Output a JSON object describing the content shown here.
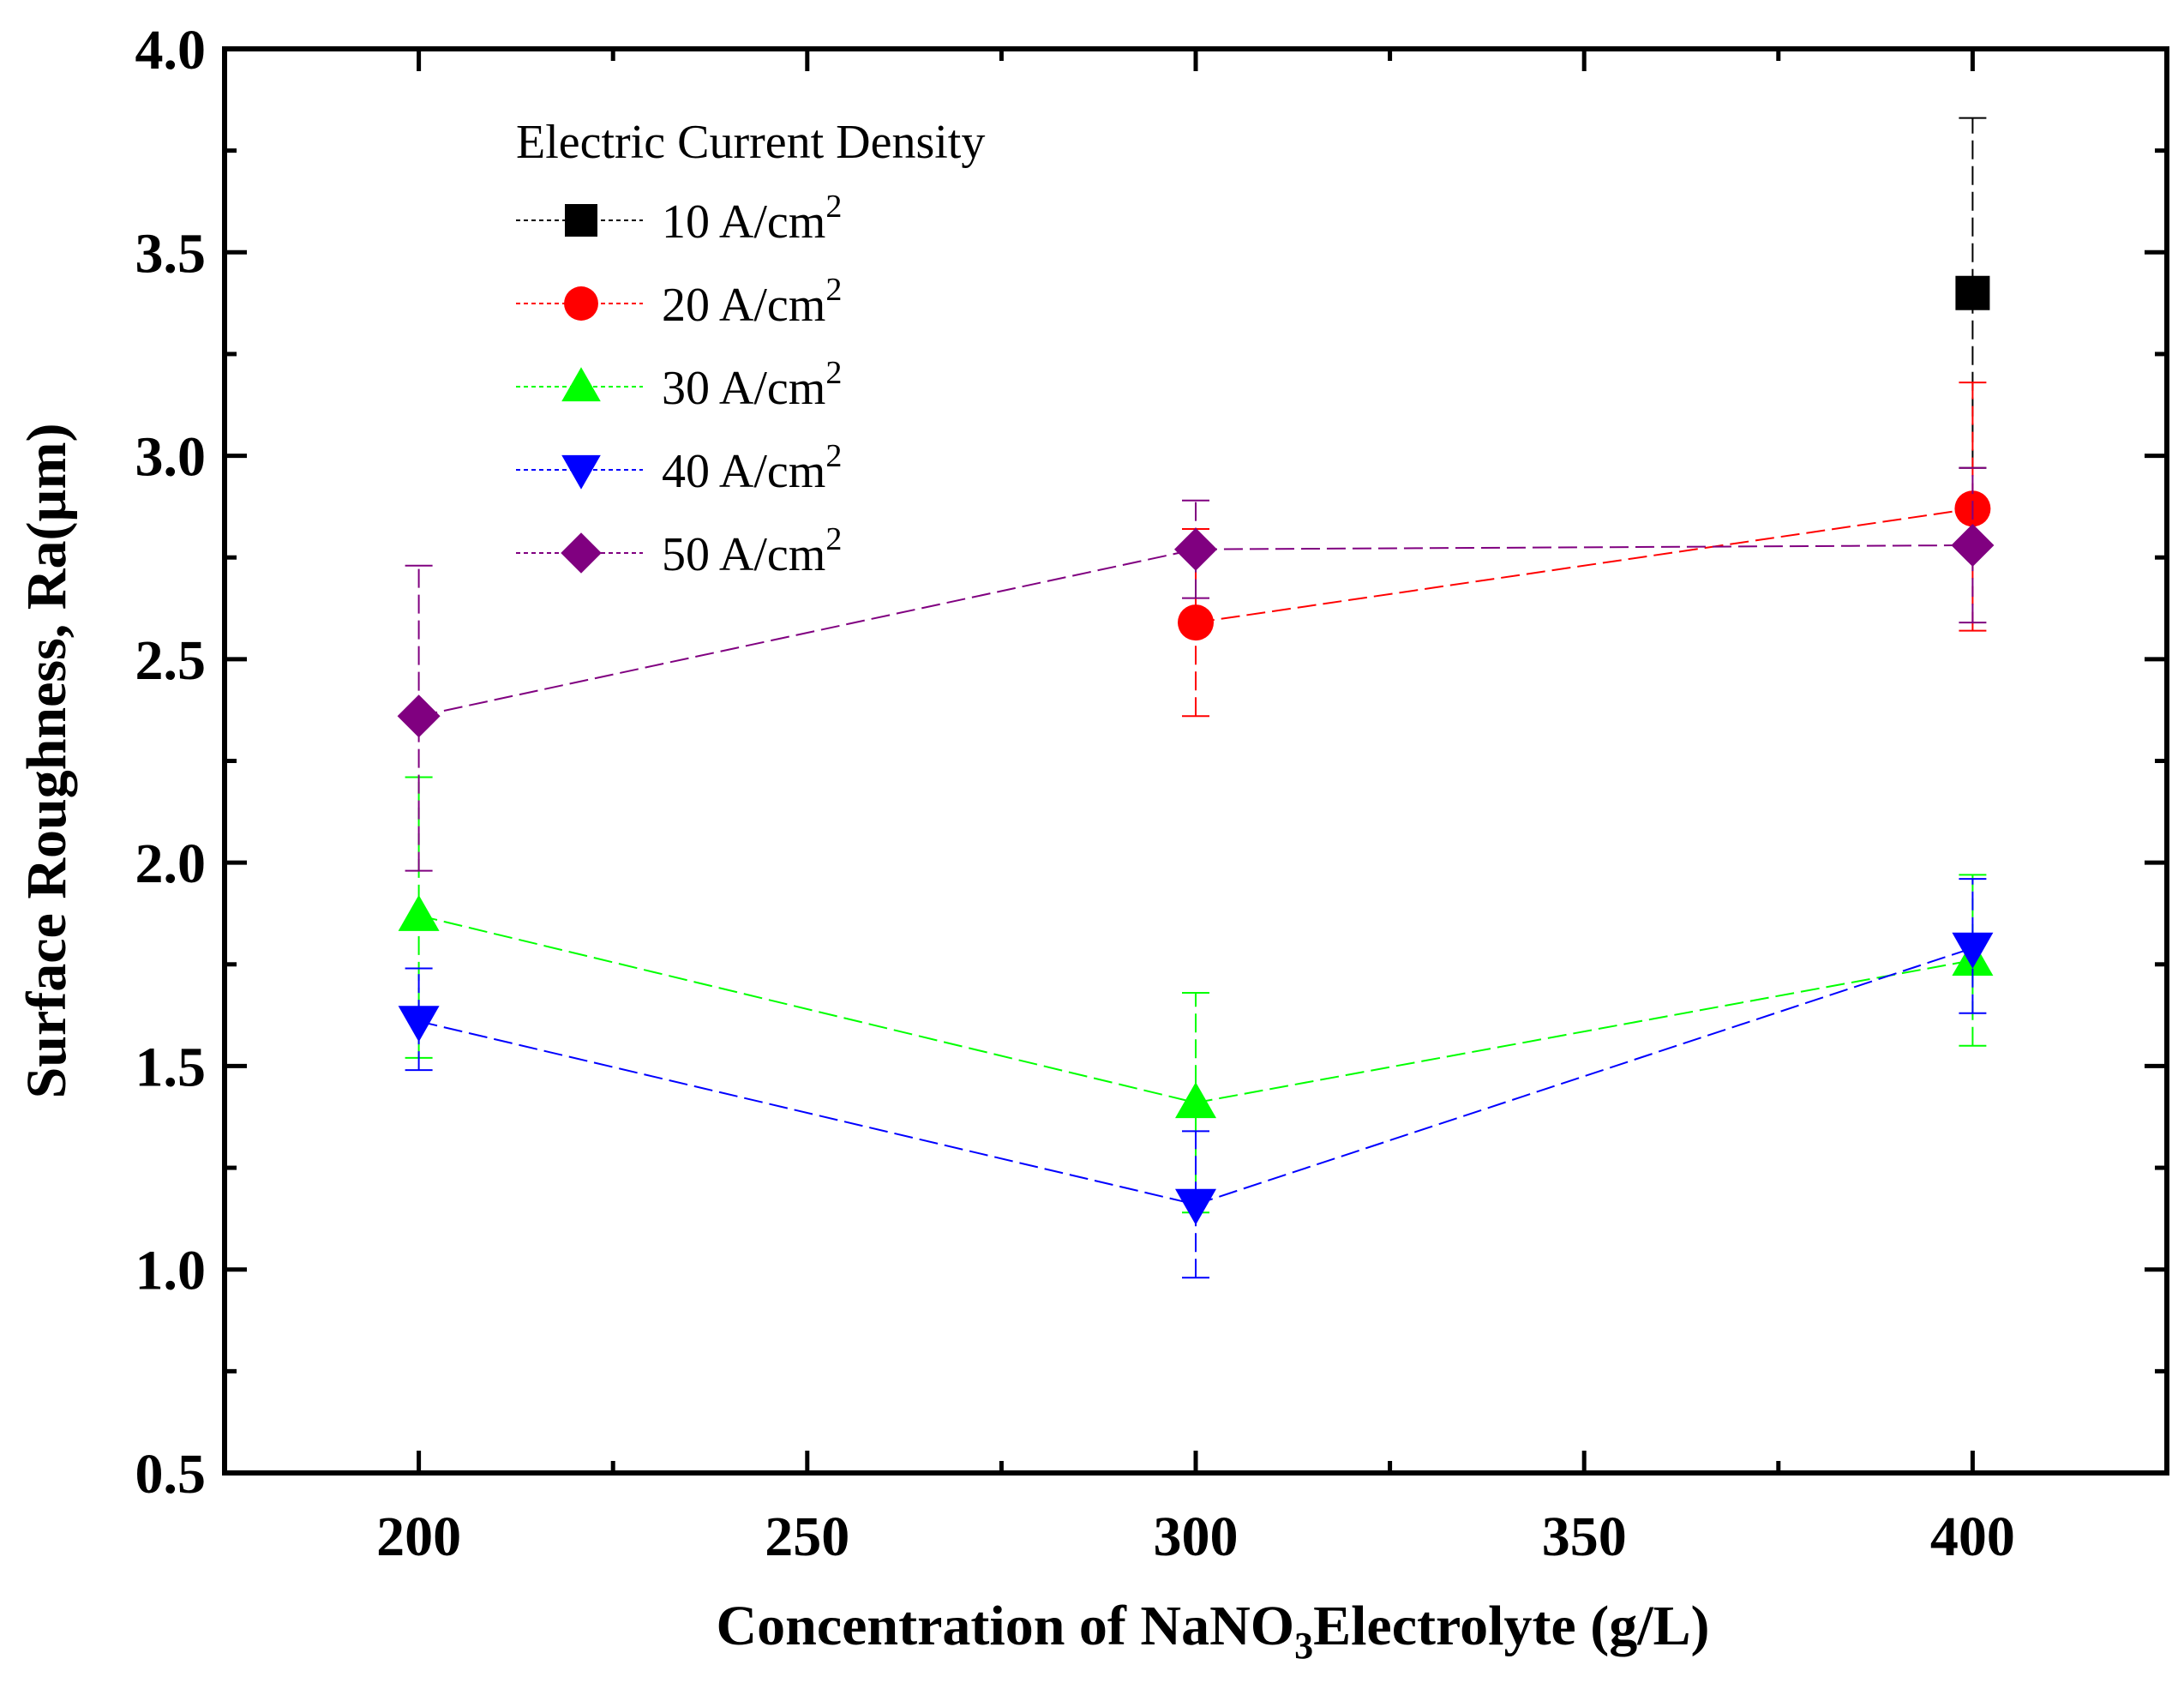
{
  "chart_data": {
    "type": "scatter",
    "title": "",
    "xlabel_parts": [
      "Concentration of NaNO",
      "3",
      "Electrolyte (g/L)"
    ],
    "ylabel": "Surface Roughness, Ra(µm)",
    "xlim": [
      175,
      425
    ],
    "ylim": [
      0.5,
      4.0
    ],
    "x_ticks": [
      200,
      250,
      300,
      350,
      400
    ],
    "x_tick_labels": [
      "200",
      "250",
      "300",
      "350",
      "400"
    ],
    "y_ticks": [
      0.5,
      1.0,
      1.5,
      2.0,
      2.5,
      3.0,
      3.5,
      4.0
    ],
    "y_tick_labels": [
      "0.5",
      "1.0",
      "1.5",
      "2.0",
      "2.5",
      "3.0",
      "3.5",
      "4.0"
    ],
    "grid": false,
    "legend_title": "Electric Current Density",
    "legend_position": "top-left",
    "series": [
      {
        "name": "10 A/cm",
        "sup": "2",
        "color": "#000000",
        "marker": "square",
        "x": [
          400
        ],
        "y": [
          3.4
        ],
        "yerr_low": [
          2.97
        ],
        "yerr_high": [
          3.83
        ]
      },
      {
        "name": "20 A/cm",
        "sup": "2",
        "color": "#ff0000",
        "marker": "circle",
        "x": [
          300,
          400
        ],
        "y": [
          2.59,
          2.87
        ],
        "yerr_low": [
          2.36,
          2.57
        ],
        "yerr_high": [
          2.82,
          3.18
        ]
      },
      {
        "name": "30 A/cm",
        "sup": "2",
        "color": "#00ff00",
        "marker": "triangle-up",
        "x": [
          200,
          300,
          400
        ],
        "y": [
          1.87,
          1.41,
          1.76
        ],
        "yerr_low": [
          1.52,
          1.14,
          1.55
        ],
        "yerr_high": [
          2.21,
          1.68,
          1.97
        ]
      },
      {
        "name": "40 A/cm",
        "sup": "2",
        "color": "#0000ff",
        "marker": "triangle-down",
        "x": [
          200,
          300,
          400
        ],
        "y": [
          1.61,
          1.16,
          1.79
        ],
        "yerr_low": [
          1.49,
          0.98,
          1.63
        ],
        "yerr_high": [
          1.74,
          1.34,
          1.96
        ]
      },
      {
        "name": "50 A/cm",
        "sup": "2",
        "color": "#800080",
        "marker": "diamond",
        "x": [
          200,
          300,
          400
        ],
        "y": [
          2.36,
          2.77,
          2.78
        ],
        "yerr_low": [
          1.98,
          2.65,
          2.59
        ],
        "yerr_high": [
          2.73,
          2.89,
          2.97
        ]
      }
    ]
  }
}
